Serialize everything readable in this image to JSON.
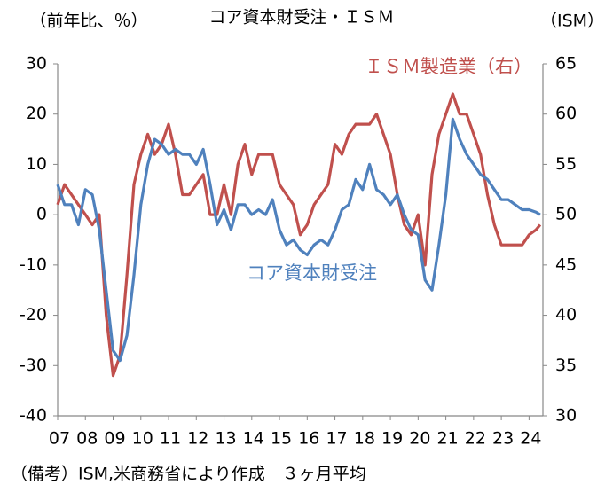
{
  "chart_data": {
    "type": "line",
    "title": "コア資本財受注・ＩＳＭ",
    "y_label": "（前年比、％）",
    "y2_label": "（ISM）",
    "note": "（備考）ISM,米商務省により作成　３ヶ月平均",
    "x": [
      2007,
      2007.25,
      2007.5,
      2007.75,
      2008,
      2008.25,
      2008.5,
      2008.75,
      2009,
      2009.25,
      2009.5,
      2009.75,
      2010,
      2010.25,
      2010.5,
      2010.75,
      2011,
      2011.25,
      2011.5,
      2011.75,
      2012,
      2012.25,
      2012.5,
      2012.75,
      2013,
      2013.25,
      2013.5,
      2013.75,
      2014,
      2014.25,
      2014.5,
      2014.75,
      2015,
      2015.25,
      2015.5,
      2015.75,
      2016,
      2016.25,
      2016.5,
      2016.75,
      2017,
      2017.25,
      2017.5,
      2017.75,
      2018,
      2018.25,
      2018.5,
      2018.75,
      2019,
      2019.25,
      2019.5,
      2019.75,
      2020,
      2020.25,
      2020.5,
      2020.75,
      2021,
      2021.25,
      2021.5,
      2021.75,
      2022,
      2022.25,
      2022.5,
      2022.75,
      2023,
      2023.25,
      2023.5,
      2023.75,
      2024,
      2024.25,
      2024.4
    ],
    "xlim": [
      2007,
      2024.5
    ],
    "xticks": [
      {
        "value": 2007,
        "label": "07"
      },
      {
        "value": 2008,
        "label": "08"
      },
      {
        "value": 2009,
        "label": "09"
      },
      {
        "value": 2010,
        "label": "10"
      },
      {
        "value": 2011,
        "label": "11"
      },
      {
        "value": 2012,
        "label": "12"
      },
      {
        "value": 2013,
        "label": "13"
      },
      {
        "value": 2014,
        "label": "14"
      },
      {
        "value": 2015,
        "label": "15"
      },
      {
        "value": 2016,
        "label": "16"
      },
      {
        "value": 2017,
        "label": "17"
      },
      {
        "value": 2018,
        "label": "18"
      },
      {
        "value": 2019,
        "label": "19"
      },
      {
        "value": 2020,
        "label": "20"
      },
      {
        "value": 2021,
        "label": "21"
      },
      {
        "value": 2022,
        "label": "22"
      },
      {
        "value": 2023,
        "label": "23"
      },
      {
        "value": 2024,
        "label": "24"
      }
    ],
    "ylim": [
      -40,
      30
    ],
    "yticks": [
      -40,
      -30,
      -20,
      -10,
      0,
      10,
      20,
      30
    ],
    "y2lim": [
      30,
      65
    ],
    "y2ticks": [
      30,
      35,
      40,
      45,
      50,
      55,
      60,
      65
    ],
    "grid": false,
    "series": [
      {
        "name": "ＩＳＭ製造業（右）",
        "color": "#c0504d",
        "axis": "y2",
        "values": [
          51,
          53,
          52,
          51,
          50,
          49,
          50,
          40,
          34,
          36,
          44,
          53,
          56,
          58,
          56,
          57,
          59,
          56,
          52,
          52,
          53,
          54,
          50,
          50,
          53,
          50,
          55,
          57,
          54,
          56,
          56,
          56,
          53,
          52,
          51,
          48,
          49,
          51,
          52,
          53,
          57,
          56,
          58,
          59,
          59,
          59,
          60,
          58,
          56,
          52,
          49,
          48,
          50,
          45,
          54,
          58,
          60,
          62,
          60,
          60,
          58,
          56,
          52,
          49,
          47,
          47,
          47,
          47,
          48,
          48.5,
          49
        ]
      },
      {
        "name": "コア資本財受注",
        "color": "#4f81bd",
        "values": [
          6,
          2,
          2,
          -2,
          5,
          4,
          -3,
          -15,
          -27,
          -29,
          -24,
          -12,
          2,
          10,
          15,
          14,
          12,
          13,
          12,
          12,
          10,
          13,
          6,
          -2,
          1,
          -3,
          2,
          2,
          0,
          1,
          0,
          3,
          -3,
          -6,
          -5,
          -7,
          -8,
          -6,
          -5,
          -6,
          -3,
          1,
          2,
          7,
          5,
          10,
          5,
          4,
          2,
          4,
          0,
          -3,
          -4,
          -13,
          -15,
          -6,
          4,
          19,
          15,
          12,
          10,
          8,
          7,
          5,
          3,
          3,
          2,
          1,
          1,
          0.5,
          0
        ]
      }
    ]
  }
}
